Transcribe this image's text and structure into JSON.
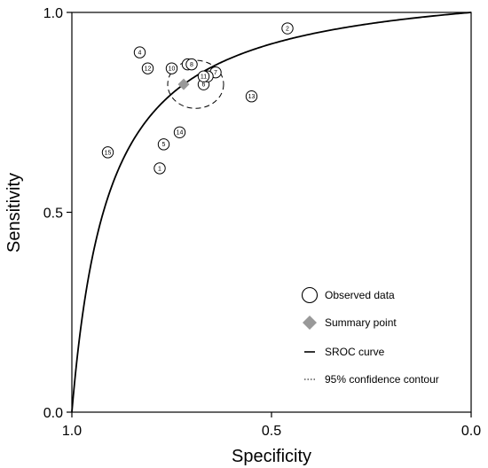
{
  "chart_data": {
    "type": "scatter",
    "xlabel": "Specificity",
    "ylabel": "Sensitivity",
    "xlim": [
      1.0,
      0.0
    ],
    "ylim": [
      0.0,
      1.0
    ],
    "x_reversed": true,
    "grid": false,
    "x_ticks": [
      "1.0",
      "0.5",
      "0.0"
    ],
    "y_ticks": [
      "0.0",
      "0.5",
      "1.0"
    ],
    "legend_position": "bottom-right",
    "legend": {
      "observed": "Observed data",
      "summary": "Summary point",
      "sroc": "SROC curve",
      "contour": "95% confidence contour"
    },
    "observed_data": [
      {
        "label": "1",
        "specificity": 0.78,
        "sensitivity": 0.61
      },
      {
        "label": "2",
        "specificity": 0.46,
        "sensitivity": 0.96
      },
      {
        "label": "3",
        "specificity": 0.71,
        "sensitivity": 0.87
      },
      {
        "label": "4",
        "specificity": 0.83,
        "sensitivity": 0.9
      },
      {
        "label": "5",
        "specificity": 0.77,
        "sensitivity": 0.67
      },
      {
        "label": "6",
        "specificity": 0.67,
        "sensitivity": 0.82
      },
      {
        "label": "7",
        "specificity": 0.64,
        "sensitivity": 0.85
      },
      {
        "label": "8",
        "specificity": 0.7,
        "sensitivity": 0.87
      },
      {
        "label": "9",
        "specificity": 0.66,
        "sensitivity": 0.84
      },
      {
        "label": "10",
        "specificity": 0.75,
        "sensitivity": 0.86
      },
      {
        "label": "11",
        "specificity": 0.67,
        "sensitivity": 0.84
      },
      {
        "label": "12",
        "specificity": 0.81,
        "sensitivity": 0.86
      },
      {
        "label": "13",
        "specificity": 0.55,
        "sensitivity": 0.79
      },
      {
        "label": "14",
        "specificity": 0.73,
        "sensitivity": 0.7
      },
      {
        "label": "15",
        "specificity": 0.91,
        "sensitivity": 0.65
      }
    ],
    "summary_point": {
      "specificity": 0.72,
      "sensitivity": 0.82
    },
    "confidence_contour": {
      "center_specificity": 0.69,
      "center_sensitivity": 0.82,
      "half_width": 0.07,
      "half_height": 0.06
    },
    "colors": {
      "summary": "#999999",
      "curve": "#000000",
      "points": "#000000"
    }
  }
}
